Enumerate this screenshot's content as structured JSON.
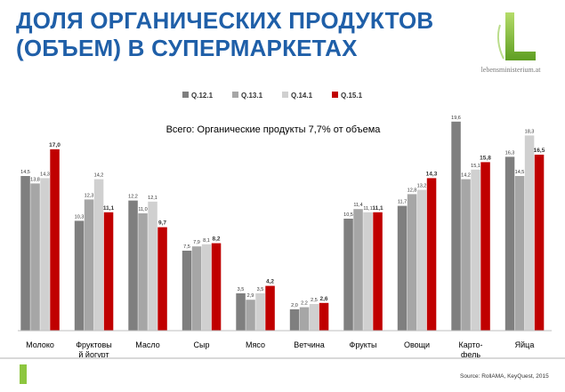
{
  "slide": {
    "title": "ДОЛЯ ОРГАНИЧЕСКИХ ПРОДУКТОВ (ОБЪЕМ) В СУПЕРМАРКЕТАХ",
    "logo_caption": "lebensministerium.at",
    "source": "Source: RollAMA, KeyQuest, 2015",
    "colors": {
      "title": "#1f5fa8",
      "logo_green": "#8dc63f"
    }
  },
  "chart_data": {
    "type": "bar",
    "annotation": "Всего: Органические продукты 7,7% от объема",
    "legend_position": "top-center",
    "categories": [
      "Молоко",
      "Фруктовый йогурт",
      "Масло",
      "Сыр",
      "Мясо",
      "Ветчина",
      "Фрукты",
      "Овощи",
      "Карто-фель",
      "Яйца"
    ],
    "category_lines": [
      [
        "Молоко"
      ],
      [
        "Фруктовы",
        "й йогурт"
      ],
      [
        "Масло"
      ],
      [
        "Сыр"
      ],
      [
        "Мясо"
      ],
      [
        "Ветчина"
      ],
      [
        "Фрукты"
      ],
      [
        "Овощи"
      ],
      [
        "Карто-",
        "фель"
      ],
      [
        "Яйца"
      ]
    ],
    "series": [
      {
        "name": "Q.12.1",
        "color": "#7f7f7f",
        "values": [
          14.5,
          10.3,
          12.2,
          7.5,
          3.5,
          2.0,
          10.5,
          11.7,
          19.6,
          16.3
        ],
        "labels": [
          "14,5",
          "10,3",
          "12,2",
          "7,5",
          "3,5",
          "2,0",
          "10,5",
          "11,7",
          "19,6",
          "16,3"
        ]
      },
      {
        "name": "Q.13.1",
        "color": "#a6a6a6",
        "values": [
          13.8,
          12.3,
          11.0,
          7.9,
          2.9,
          2.2,
          11.4,
          12.8,
          14.2,
          14.5
        ],
        "labels": [
          "13,8",
          "12,3",
          "11,0",
          "7,9",
          "2,9",
          "2,2",
          "11,4",
          "12,8",
          "14,2",
          "14,5"
        ]
      },
      {
        "name": "Q.14.1",
        "color": "#d0d0d0",
        "values": [
          14.3,
          14.2,
          12.1,
          8.1,
          3.5,
          2.5,
          11.1,
          13.2,
          15.1,
          18.3
        ],
        "labels": [
          "14,3",
          "14,2",
          "12,1",
          "8,1",
          "3,5",
          "2,5",
          "11,1",
          "13,2",
          "15,1",
          "18,3"
        ]
      },
      {
        "name": "Q.15.1",
        "color": "#c00000",
        "values": [
          17.0,
          11.1,
          9.7,
          8.2,
          4.2,
          2.6,
          11.1,
          14.3,
          15.8,
          16.5
        ],
        "labels": [
          "17,0",
          "11,1",
          "9,7",
          "8,2",
          "4,2",
          "2,6",
          "11,1",
          "14,3",
          "15,8",
          "16,5"
        ]
      }
    ],
    "ylim": [
      0,
      21
    ],
    "grid": false
  }
}
